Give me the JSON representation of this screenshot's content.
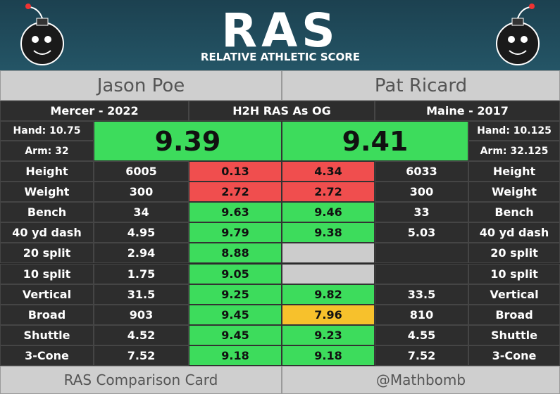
{
  "header": {
    "logo": "RAS",
    "subtitle": "RELATIVE ATHLETIC SCORE"
  },
  "left_player": {
    "name": "Jason Poe",
    "team": "Mercer - 2022",
    "hand": "Hand: 10.75",
    "arm": "Arm: 32",
    "ras": 9.39,
    "ras_color": "#3ddc5c"
  },
  "right_player": {
    "name": "Pat Ricard",
    "team": "Maine - 2017",
    "hand": "Hand: 10.125",
    "arm": "Arm: 32.125",
    "ras": 9.41,
    "ras_color": "#3ddc5c"
  },
  "comparison_title": "H2H RAS As OG",
  "rows": [
    {
      "label": "Height",
      "left": 6005,
      "left_score": 0.13,
      "left_color": "#f04e4e",
      "right_score": 4.34,
      "right_color": "#f04e4e",
      "right": 6033
    },
    {
      "label": "Weight",
      "left": 300,
      "left_score": 2.72,
      "left_color": "#f04e4e",
      "right_score": 2.72,
      "right_color": "#f04e4e",
      "right": 300
    },
    {
      "label": "Bench",
      "left": 34,
      "left_score": 9.63,
      "left_color": "#3ddc5c",
      "right_score": 9.46,
      "right_color": "#3ddc5c",
      "right": 33
    },
    {
      "label": "40 yd dash",
      "left": 4.95,
      "left_score": 9.79,
      "left_color": "#3ddc5c",
      "right_score": 9.38,
      "right_color": "#3ddc5c",
      "right": 5.03
    },
    {
      "label": "20 split",
      "left": 2.94,
      "left_score": 8.88,
      "left_color": "#3ddc5c",
      "right_score": null,
      "right_color": "#cccccc",
      "right": null
    },
    {
      "label": "10 split",
      "left": 1.75,
      "left_score": 9.05,
      "left_color": "#3ddc5c",
      "right_score": null,
      "right_color": "#cccccc",
      "right": null
    },
    {
      "label": "Vertical",
      "left": 31.5,
      "left_score": 9.25,
      "left_color": "#3ddc5c",
      "right_score": 9.82,
      "right_color": "#3ddc5c",
      "right": 33.5
    },
    {
      "label": "Broad",
      "left": 903,
      "left_score": 9.45,
      "left_color": "#3ddc5c",
      "right_score": 7.96,
      "right_color": "#f7c12c",
      "right": 810
    },
    {
      "label": "Shuttle",
      "left": 4.52,
      "left_score": 9.45,
      "left_color": "#3ddc5c",
      "right_score": 9.23,
      "right_color": "#3ddc5c",
      "right": 4.55
    },
    {
      "label": "3-Cone",
      "left": 7.52,
      "left_score": 9.18,
      "left_color": "#3ddc5c",
      "right_score": 9.18,
      "right_color": "#3ddc5c",
      "right": 7.52
    }
  ],
  "footer": {
    "left": "RAS Comparison Card",
    "right": "@Mathbomb"
  }
}
